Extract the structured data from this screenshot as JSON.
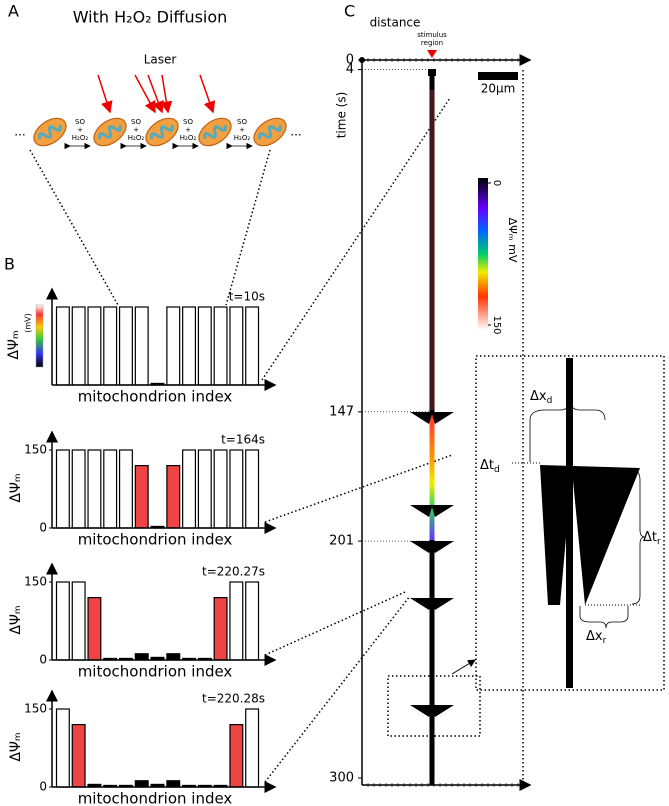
{
  "panel_labels": [
    "A",
    "B",
    "C"
  ],
  "panel_a": {
    "title": "With H₂O₂ Diffusion",
    "laser": "Laser",
    "ellipsis": "...",
    "reaction": [
      "SO",
      "+",
      "H₂O₂"
    ]
  },
  "chart_data": [
    {
      "type": "bar",
      "annotation": "t=10s",
      "xlabel": "mitochondrion index",
      "ylabel": "ΔΨₘ",
      "yunit": "(mV)",
      "ylim": [
        0,
        150
      ],
      "yticks": [],
      "values": [
        150,
        150,
        150,
        150,
        150,
        150,
        3,
        150,
        150,
        150,
        150,
        150,
        150
      ],
      "colors": [
        "#ffffff",
        "#ffffff",
        "#ffffff",
        "#ffffff",
        "#ffffff",
        "#ffffff",
        "#000000",
        "#ffffff",
        "#ffffff",
        "#ffffff",
        "#ffffff",
        "#ffffff",
        "#ffffff"
      ]
    },
    {
      "type": "bar",
      "annotation": "t=164s",
      "xlabel": "mitochondrion index",
      "ylabel": "ΔΨₘ",
      "ylim": [
        0,
        150
      ],
      "yticks": [
        0,
        150
      ],
      "values": [
        150,
        150,
        150,
        150,
        150,
        120,
        3,
        120,
        150,
        150,
        150,
        150,
        150
      ],
      "colors": [
        "#ffffff",
        "#ffffff",
        "#ffffff",
        "#ffffff",
        "#ffffff",
        "#ee4444",
        "#000000",
        "#ee4444",
        "#ffffff",
        "#ffffff",
        "#ffffff",
        "#ffffff",
        "#ffffff"
      ]
    },
    {
      "type": "bar",
      "annotation": "t=220.27s",
      "xlabel": "mitochondrion index",
      "ylabel": "ΔΨₘ",
      "ylim": [
        0,
        150
      ],
      "yticks": [
        0,
        150
      ],
      "values": [
        150,
        150,
        120,
        3,
        3,
        12,
        5,
        12,
        3,
        3,
        120,
        150,
        150
      ],
      "colors": [
        "#ffffff",
        "#ffffff",
        "#ee4444",
        "#000000",
        "#000000",
        "#000000",
        "#000000",
        "#000000",
        "#000000",
        "#000000",
        "#ee4444",
        "#ffffff",
        "#ffffff"
      ]
    },
    {
      "type": "bar",
      "annotation": "t=220.28s",
      "xlabel": "mitochondrion index",
      "ylabel": "ΔΨₘ",
      "ylim": [
        0,
        150
      ],
      "yticks": [
        0,
        150
      ],
      "values": [
        150,
        120,
        5,
        3,
        3,
        12,
        5,
        12,
        3,
        3,
        3,
        120,
        150
      ],
      "colors": [
        "#ffffff",
        "#ee4444",
        "#000000",
        "#000000",
        "#000000",
        "#000000",
        "#000000",
        "#000000",
        "#000000",
        "#000000",
        "#000000",
        "#ee4444",
        "#ffffff"
      ]
    },
    {
      "type": "kymograph",
      "xlabel": "distance",
      "stimulus": [
        "stimulus",
        "region"
      ],
      "scale_bar": "20μm",
      "ylabel": "time (s)",
      "ylim": [
        0,
        300
      ],
      "yticks": [
        0,
        4,
        147,
        201,
        300
      ],
      "colorbar": {
        "label": "ΔΨₘ mV",
        "ticks": [
          0,
          150
        ]
      },
      "inset": {
        "dxd": [
          "Δx",
          "d"
        ],
        "dtd": [
          "Δt",
          "d"
        ],
        "dtr": [
          "Δt",
          "r"
        ],
        "dxr": [
          "Δx",
          "r"
        ]
      }
    }
  ]
}
